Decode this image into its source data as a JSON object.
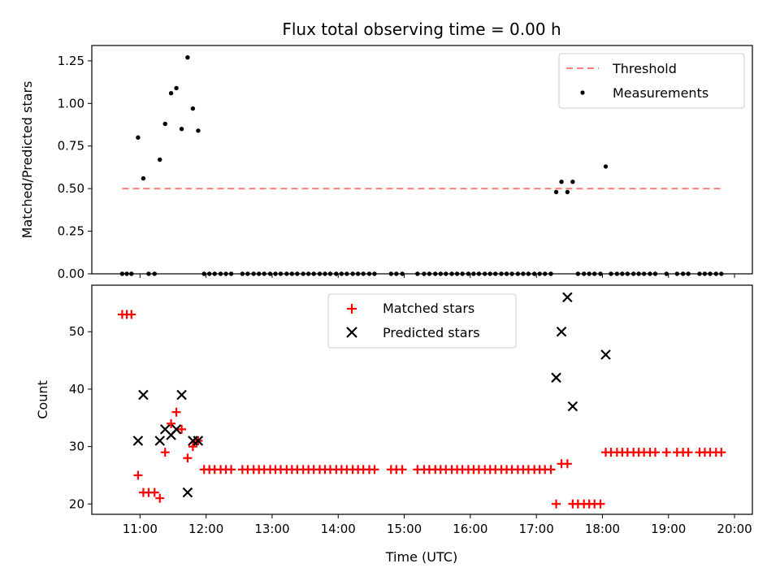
{
  "chart_data": {
    "type": "scatter",
    "title": "Flux total observing time = 0.00 h",
    "xlabel": "Time (UTC)",
    "x_tick_labels": [
      "11:00",
      "12:00",
      "13:00",
      "14:00",
      "15:00",
      "16:00",
      "17:00",
      "18:00",
      "19:00",
      "20:00"
    ],
    "x_tick_hours": [
      11,
      12,
      13,
      14,
      15,
      16,
      17,
      18,
      19,
      20
    ],
    "xlim_hours": [
      10.27,
      20.27
    ],
    "top": {
      "ylabel": "Matched/Predicted stars",
      "ylim": [
        0,
        1.34
      ],
      "y_ticks": [
        0,
        0.25,
        0.5,
        0.75,
        1.0,
        1.25
      ],
      "y_tick_labels": [
        "0.00",
        "0.25",
        "0.50",
        "0.75",
        "1.00",
        "1.25"
      ],
      "threshold": {
        "name": "Threshold",
        "value": 0.5,
        "x_range": [
          10.73,
          19.82
        ],
        "color": "#ff7f7f"
      },
      "measurements": {
        "name": "Measurements",
        "color": "#000000",
        "x": [
          10.73,
          10.8,
          10.87,
          10.97,
          11.05,
          11.13,
          11.22,
          11.3,
          11.38,
          11.47,
          11.55,
          11.63,
          11.72,
          11.8,
          11.88,
          11.97,
          12.05,
          12.13,
          12.22,
          12.3,
          12.38,
          12.55,
          12.63,
          12.72,
          12.8,
          12.88,
          12.97,
          13.05,
          13.13,
          13.22,
          13.3,
          13.38,
          13.47,
          13.55,
          13.63,
          13.72,
          13.8,
          13.88,
          13.97,
          14.05,
          14.13,
          14.22,
          14.3,
          14.38,
          14.47,
          14.55,
          14.8,
          14.88,
          14.97,
          15.2,
          15.3,
          15.38,
          15.47,
          15.55,
          15.63,
          15.72,
          15.8,
          15.88,
          15.97,
          16.05,
          16.13,
          16.22,
          16.3,
          16.38,
          16.47,
          16.55,
          16.63,
          16.72,
          16.8,
          16.88,
          16.97,
          17.05,
          17.13,
          17.22,
          17.3,
          17.38,
          17.47,
          17.55,
          17.63,
          17.72,
          17.8,
          17.88,
          17.97,
          18.05,
          18.13,
          18.22,
          18.3,
          18.38,
          18.47,
          18.55,
          18.63,
          18.72,
          18.8,
          18.97,
          19.13,
          19.22,
          19.3,
          19.47,
          19.55,
          19.63,
          19.72,
          19.8
        ],
        "y": [
          0,
          0,
          0,
          0.8,
          0.56,
          0,
          0,
          0.67,
          0.88,
          1.06,
          1.09,
          0.85,
          1.27,
          0.97,
          0.84,
          0,
          0,
          0,
          0,
          0,
          0,
          0,
          0,
          0,
          0,
          0,
          0,
          0,
          0,
          0,
          0,
          0,
          0,
          0,
          0,
          0,
          0,
          0,
          0,
          0,
          0,
          0,
          0,
          0,
          0,
          0,
          0,
          0,
          0,
          0,
          0,
          0,
          0,
          0,
          0,
          0,
          0,
          0,
          0,
          0,
          0,
          0,
          0,
          0,
          0,
          0,
          0,
          0,
          0,
          0,
          0,
          0,
          0,
          0,
          0.48,
          0.54,
          0.48,
          0.54,
          0,
          0,
          0,
          0,
          0,
          0.63,
          0,
          0,
          0,
          0,
          0,
          0,
          0,
          0,
          0,
          0,
          0,
          0,
          0,
          0,
          0,
          0,
          0,
          0
        ]
      },
      "legend": [
        "Threshold",
        "Measurements"
      ]
    },
    "bottom": {
      "ylabel": "Count",
      "ylim": [
        18.2,
        58.1
      ],
      "y_ticks": [
        20,
        30,
        40,
        50
      ],
      "y_tick_labels": [
        "20",
        "30",
        "40",
        "50"
      ],
      "series": [
        {
          "name": "Matched stars",
          "marker": "+",
          "color": "#ff0000",
          "x": [
            10.73,
            10.8,
            10.87,
            10.97,
            11.05,
            11.13,
            11.22,
            11.3,
            11.38,
            11.47,
            11.55,
            11.63,
            11.72,
            11.8,
            11.88,
            11.97,
            12.05,
            12.13,
            12.22,
            12.3,
            12.38,
            12.55,
            12.63,
            12.72,
            12.8,
            12.88,
            12.97,
            13.05,
            13.13,
            13.22,
            13.3,
            13.38,
            13.47,
            13.55,
            13.63,
            13.72,
            13.8,
            13.88,
            13.97,
            14.05,
            14.13,
            14.22,
            14.3,
            14.38,
            14.47,
            14.55,
            14.8,
            14.88,
            14.97,
            15.2,
            15.3,
            15.38,
            15.47,
            15.55,
            15.63,
            15.72,
            15.8,
            15.88,
            15.97,
            16.05,
            16.13,
            16.22,
            16.3,
            16.38,
            16.47,
            16.55,
            16.63,
            16.72,
            16.8,
            16.88,
            16.97,
            17.05,
            17.13,
            17.22,
            17.3,
            17.38,
            17.47,
            17.55,
            17.63,
            17.72,
            17.8,
            17.88,
            17.97,
            18.05,
            18.13,
            18.22,
            18.3,
            18.38,
            18.47,
            18.55,
            18.63,
            18.72,
            18.8,
            18.97,
            19.13,
            19.22,
            19.3,
            19.47,
            19.55,
            19.63,
            19.72,
            19.8
          ],
          "y": [
            53,
            53,
            53,
            25,
            22,
            22,
            22,
            21,
            29,
            34,
            36,
            33,
            28,
            30,
            31,
            26,
            26,
            26,
            26,
            26,
            26,
            26,
            26,
            26,
            26,
            26,
            26,
            26,
            26,
            26,
            26,
            26,
            26,
            26,
            26,
            26,
            26,
            26,
            26,
            26,
            26,
            26,
            26,
            26,
            26,
            26,
            26,
            26,
            26,
            26,
            26,
            26,
            26,
            26,
            26,
            26,
            26,
            26,
            26,
            26,
            26,
            26,
            26,
            26,
            26,
            26,
            26,
            26,
            26,
            26,
            26,
            26,
            26,
            26,
            20,
            27,
            27,
            20,
            20,
            20,
            20,
            20,
            20,
            29,
            29,
            29,
            29,
            29,
            29,
            29,
            29,
            29,
            29,
            29,
            29,
            29,
            29,
            29,
            29,
            29,
            29,
            29
          ]
        },
        {
          "name": "Predicted stars",
          "marker": "x",
          "color": "#000000",
          "x": [
            10.97,
            11.05,
            11.3,
            11.38,
            11.47,
            11.55,
            11.63,
            11.72,
            11.8,
            11.88,
            17.3,
            17.38,
            17.47,
            17.55,
            18.05
          ],
          "y": [
            31,
            39,
            31,
            33,
            32,
            33,
            39,
            22,
            31,
            31,
            42,
            50,
            56,
            37,
            46
          ]
        }
      ],
      "legend": [
        "Matched stars",
        "Predicted stars"
      ]
    }
  }
}
